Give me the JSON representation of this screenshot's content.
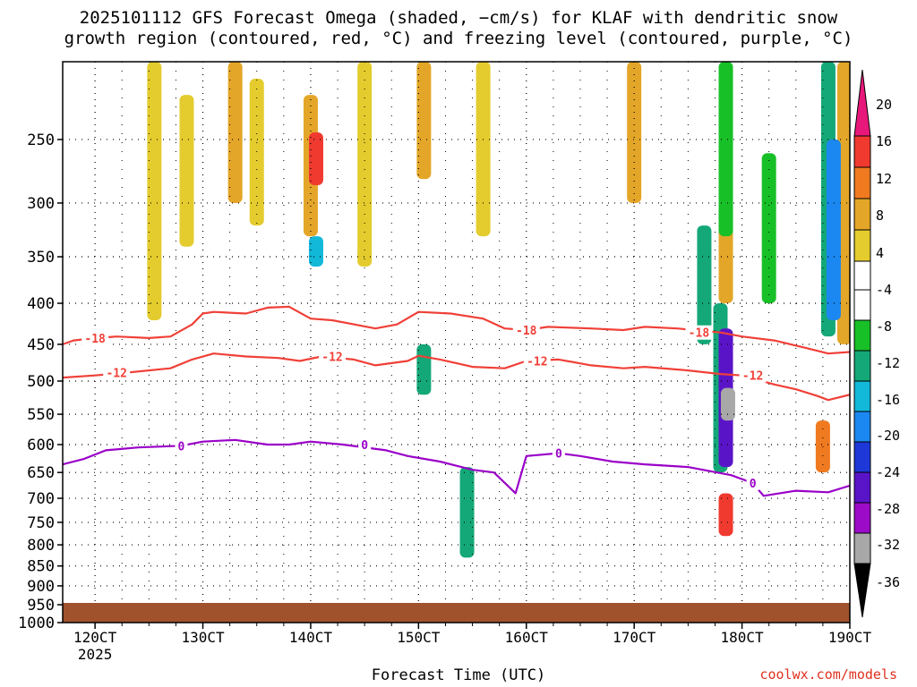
{
  "chart_data": {
    "type": "heatmap",
    "title_line1": "2025101112 GFS Forecast Omega (shaded, −cm/s) for KLAF with dendritic snow",
    "title_line2": "growth region (contoured, red, °C) and freezing level (contoured, purple, °C)",
    "xlabel": "Forecast Time (UTC)",
    "ylabel": "",
    "credit": "coolwx.com/models",
    "x_ticks": [
      "120CT",
      "130CT",
      "140CT",
      "150CT",
      "160CT",
      "170CT",
      "180CT",
      "190CT"
    ],
    "x_year": "2025",
    "xlim": [
      11.7,
      19.0
    ],
    "y_ticks": [
      250,
      300,
      350,
      400,
      450,
      500,
      550,
      600,
      650,
      700,
      750,
      800,
      850,
      900,
      950,
      1000
    ],
    "ylim": [
      200,
      1000
    ],
    "y_axis": "pressure (hPa), log scale",
    "colorbar_labels": [
      "20",
      "16",
      "12",
      "8",
      "4",
      "-4",
      "-8",
      "-12",
      "-16",
      "-20",
      "-24",
      "-28",
      "-32",
      "-36"
    ],
    "colorbar_colors": [
      "#e8177a",
      "#f03a30",
      "#f07a20",
      "#e4a628",
      "#e4cc2e",
      "#ffffff",
      "#18c028",
      "#14a878",
      "#12b8d8",
      "#1a88f0",
      "#1e38d8",
      "#5a14c8",
      "#9c0cc8",
      "#a8a8a8",
      "#000000"
    ],
    "colors": {
      "snow_growth": "#f04038",
      "freezing": "#9a00c8",
      "ground": "#a0522d"
    },
    "contours": [
      {
        "label": "-18",
        "color": "snow_growth",
        "label_at": [
          12.0,
          17.6,
          16.0
        ],
        "points": [
          [
            11.7,
            450
          ],
          [
            11.8,
            445
          ],
          [
            12.0,
            442
          ],
          [
            12.2,
            440
          ],
          [
            12.5,
            442
          ],
          [
            12.7,
            440
          ],
          [
            12.9,
            425
          ],
          [
            13.0,
            412
          ],
          [
            13.1,
            410
          ],
          [
            13.4,
            412
          ],
          [
            13.6,
            405
          ],
          [
            13.8,
            404
          ],
          [
            14.0,
            418
          ],
          [
            14.2,
            420
          ],
          [
            14.6,
            430
          ],
          [
            14.8,
            425
          ],
          [
            15.0,
            410
          ],
          [
            15.3,
            412
          ],
          [
            15.6,
            418
          ],
          [
            15.8,
            430
          ],
          [
            16.0,
            432
          ],
          [
            16.2,
            428
          ],
          [
            16.6,
            430
          ],
          [
            16.9,
            432
          ],
          [
            17.1,
            428
          ],
          [
            17.4,
            430
          ],
          [
            17.8,
            435
          ],
          [
            18.0,
            440
          ],
          [
            18.3,
            445
          ],
          [
            18.6,
            455
          ],
          [
            18.8,
            462
          ],
          [
            19.0,
            460
          ]
        ]
      },
      {
        "label": "-12",
        "color": "snow_growth",
        "label_at": [
          12.2,
          14.2,
          16.1,
          18.1
        ],
        "points": [
          [
            11.7,
            495
          ],
          [
            12.0,
            492
          ],
          [
            12.3,
            488
          ],
          [
            12.7,
            482
          ],
          [
            12.9,
            470
          ],
          [
            13.1,
            462
          ],
          [
            13.4,
            466
          ],
          [
            13.7,
            468
          ],
          [
            13.9,
            472
          ],
          [
            14.1,
            466
          ],
          [
            14.4,
            470
          ],
          [
            14.6,
            478
          ],
          [
            14.9,
            472
          ],
          [
            15.0,
            465
          ],
          [
            15.2,
            470
          ],
          [
            15.5,
            480
          ],
          [
            15.8,
            482
          ],
          [
            16.0,
            472
          ],
          [
            16.3,
            470
          ],
          [
            16.6,
            478
          ],
          [
            16.9,
            482
          ],
          [
            17.1,
            480
          ],
          [
            17.5,
            485
          ],
          [
            17.8,
            490
          ],
          [
            18.0,
            492
          ],
          [
            18.3,
            505
          ],
          [
            18.5,
            512
          ],
          [
            18.7,
            522
          ],
          [
            18.8,
            528
          ],
          [
            19.0,
            520
          ]
        ]
      },
      {
        "label": "0",
        "color": "freezing",
        "label_at": [
          12.8,
          14.5,
          16.3,
          18.1
        ],
        "points": [
          [
            11.7,
            635
          ],
          [
            11.9,
            625
          ],
          [
            12.1,
            610
          ],
          [
            12.4,
            605
          ],
          [
            12.8,
            602
          ],
          [
            13.0,
            595
          ],
          [
            13.3,
            592
          ],
          [
            13.6,
            600
          ],
          [
            13.8,
            600
          ],
          [
            14.0,
            595
          ],
          [
            14.3,
            600
          ],
          [
            14.7,
            610
          ],
          [
            14.9,
            620
          ],
          [
            15.2,
            630
          ],
          [
            15.5,
            645
          ],
          [
            15.7,
            650
          ],
          [
            15.9,
            690
          ],
          [
            16.0,
            620
          ],
          [
            16.3,
            615
          ],
          [
            16.5,
            620
          ],
          [
            16.8,
            630
          ],
          [
            17.1,
            635
          ],
          [
            17.5,
            640
          ],
          [
            17.9,
            655
          ],
          [
            18.1,
            670
          ],
          [
            18.2,
            695
          ],
          [
            18.5,
            685
          ],
          [
            18.8,
            688
          ],
          [
            19.0,
            675
          ]
        ]
      }
    ],
    "shaded_regions": [
      {
        "x": 12.55,
        "p1": 200,
        "p2": 420,
        "v": 5
      },
      {
        "x": 12.85,
        "p1": 220,
        "p2": 340,
        "v": 6
      },
      {
        "x": 13.3,
        "p1": 200,
        "p2": 300,
        "v": 10
      },
      {
        "x": 13.5,
        "p1": 210,
        "p2": 320,
        "v": 6
      },
      {
        "x": 14.0,
        "p1": 220,
        "p2": 330,
        "v": 11
      },
      {
        "x": 14.05,
        "p1": 245,
        "p2": 285,
        "v": 17
      },
      {
        "x": 14.5,
        "p1": 200,
        "p2": 360,
        "v": 6
      },
      {
        "x": 15.05,
        "p1": 200,
        "p2": 280,
        "v": 10
      },
      {
        "x": 15.6,
        "p1": 200,
        "p2": 330,
        "v": 5
      },
      {
        "x": 17.0,
        "p1": 200,
        "p2": 300,
        "v": 9
      },
      {
        "x": 17.85,
        "p1": 300,
        "p2": 400,
        "v": 9
      },
      {
        "x": 17.85,
        "p1": 520,
        "p2": 620,
        "v": 10
      },
      {
        "x": 18.75,
        "p1": 560,
        "p2": 650,
        "v": 15
      },
      {
        "x": 18.95,
        "p1": 200,
        "p2": 450,
        "v": 9
      },
      {
        "x": 17.85,
        "p1": 690,
        "p2": 780,
        "v": 16
      },
      {
        "x": 14.05,
        "p1": 330,
        "p2": 360,
        "v": -12
      },
      {
        "x": 17.85,
        "p1": 200,
        "p2": 330,
        "v": -7
      },
      {
        "x": 17.65,
        "p1": 320,
        "p2": 450,
        "v": -9
      },
      {
        "x": 17.8,
        "p1": 400,
        "p2": 650,
        "v": -8
      },
      {
        "x": 17.85,
        "p1": 430,
        "p2": 640,
        "v": -27
      },
      {
        "x": 17.87,
        "p1": 510,
        "p2": 560,
        "v": -34
      },
      {
        "x": 18.25,
        "p1": 260,
        "p2": 400,
        "v": -7
      },
      {
        "x": 18.8,
        "p1": 200,
        "p2": 440,
        "v": -10
      },
      {
        "x": 18.85,
        "p1": 250,
        "p2": 420,
        "v": -16
      },
      {
        "x": 15.45,
        "p1": 640,
        "p2": 830,
        "v": -8
      },
      {
        "x": 15.05,
        "p1": 450,
        "p2": 520,
        "v": -8
      }
    ]
  }
}
